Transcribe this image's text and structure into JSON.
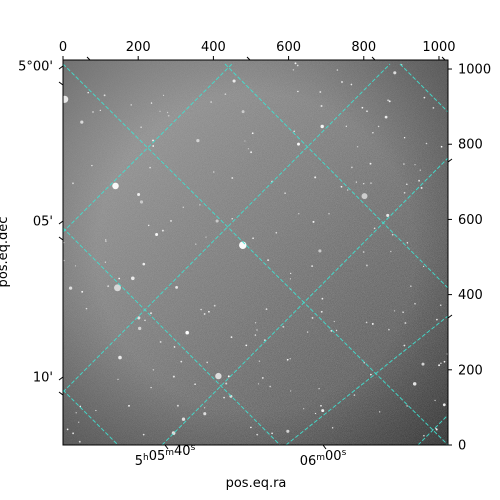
{
  "image": {
    "description_free": true,
    "colormap": "gray",
    "grid_color": "#40e0d0"
  },
  "axes": {
    "pixel_x": {
      "ticks": [
        "0",
        "200",
        "400",
        "600",
        "800",
        "1000"
      ],
      "values": [
        0,
        200,
        400,
        600,
        800,
        1000
      ],
      "range": [
        0,
        1024
      ]
    },
    "pixel_y": {
      "ticks": [
        "0",
        "200",
        "400",
        "600",
        "800",
        "1000"
      ],
      "values": [
        0,
        200,
        400,
        600,
        800,
        1000
      ],
      "range": [
        0,
        1024
      ]
    },
    "ra": {
      "label": "pos.eq.ra",
      "ticks": [
        {
          "h": "5",
          "m": "05",
          "s": "40",
          "value_sec": 40
        },
        {
          "h": "",
          "m": "06",
          "s": "00",
          "value_sec": 60
        }
      ]
    },
    "dec": {
      "label": "pos.eq.dec",
      "ticks": [
        "5°00'",
        "05'",
        "10'"
      ],
      "values_arcmin": [
        0,
        5,
        10
      ]
    }
  }
}
